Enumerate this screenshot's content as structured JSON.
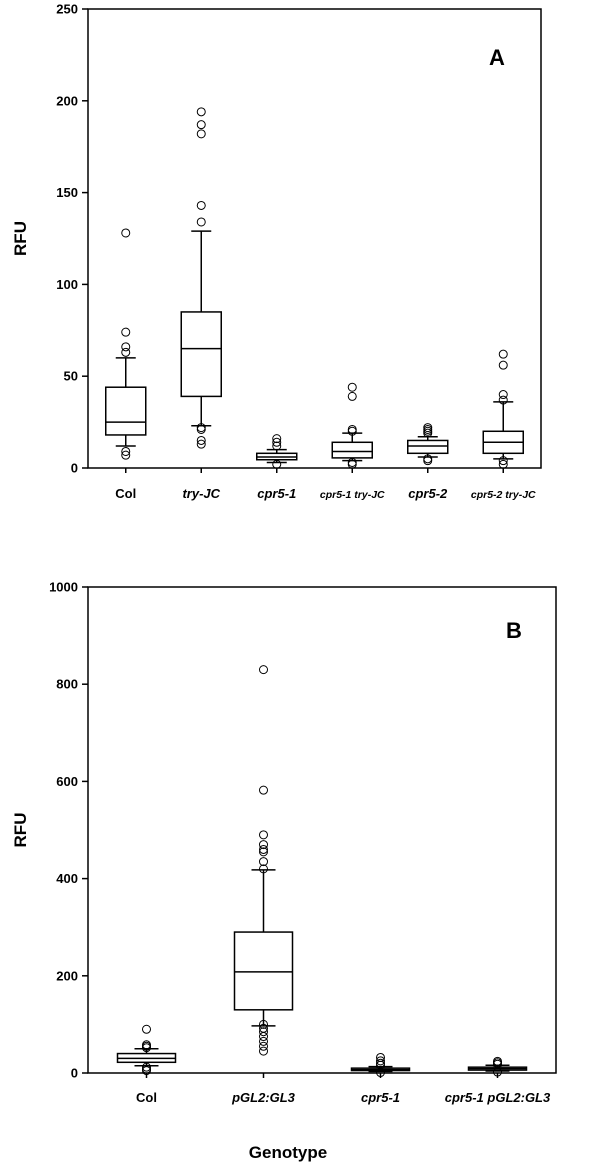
{
  "chart_data": [
    {
      "type": "box",
      "panel_label": "A",
      "ylabel": "RFU",
      "xlabel": "",
      "ylim": [
        0,
        250
      ],
      "yticks": [
        0,
        50,
        100,
        150,
        200,
        250
      ],
      "categories": [
        {
          "label": "Col",
          "italic": false,
          "small": false
        },
        {
          "label": "try-JC",
          "italic": true,
          "small": false
        },
        {
          "label": "cpr5-1",
          "italic": true,
          "small": false
        },
        {
          "label": "cpr5-1 try-JC",
          "italic": true,
          "small": true
        },
        {
          "label": "cpr5-2",
          "italic": true,
          "small": false
        },
        {
          "label": "cpr5-2 try-JC",
          "italic": true,
          "small": true
        }
      ],
      "boxes": [
        {
          "whisker_low": 12,
          "q1": 18,
          "median": 25,
          "q3": 44,
          "whisker_high": 60,
          "outliers": [
            7,
            9,
            63,
            66,
            74,
            128
          ]
        },
        {
          "whisker_low": 23,
          "q1": 39,
          "median": 65,
          "q3": 85,
          "whisker_high": 129,
          "outliers": [
            13,
            15,
            21,
            22,
            134,
            143,
            182,
            187,
            194
          ]
        },
        {
          "whisker_low": 3,
          "q1": 4.5,
          "median": 6,
          "q3": 8,
          "whisker_high": 10,
          "outliers": [
            2,
            12,
            14,
            16
          ]
        },
        {
          "whisker_low": 4,
          "q1": 5.5,
          "median": 9,
          "q3": 14,
          "whisker_high": 19,
          "outliers": [
            2,
            3,
            20,
            21,
            39,
            44
          ]
        },
        {
          "whisker_low": 6,
          "q1": 8,
          "median": 12,
          "q3": 15,
          "whisker_high": 17,
          "outliers": [
            4,
            5,
            19,
            20,
            21,
            22
          ]
        },
        {
          "whisker_low": 5,
          "q1": 8,
          "median": 14,
          "q3": 20,
          "whisker_high": 36,
          "outliers": [
            2,
            4,
            37,
            40,
            56,
            62
          ]
        }
      ]
    },
    {
      "type": "box",
      "panel_label": "B",
      "ylabel": "RFU",
      "xlabel": "Genotype",
      "ylim": [
        0,
        1000
      ],
      "yticks": [
        0,
        200,
        400,
        600,
        800,
        1000
      ],
      "categories": [
        {
          "label": "Col",
          "italic": false,
          "small": false
        },
        {
          "label": "pGL2:GL3",
          "italic": true,
          "small": false
        },
        {
          "label": "cpr5-1",
          "italic": true,
          "small": false
        },
        {
          "label": "cpr5-1 pGL2:GL3",
          "italic": true,
          "small": false
        }
      ],
      "boxes": [
        {
          "whisker_low": 15,
          "q1": 22,
          "median": 30,
          "q3": 40,
          "whisker_high": 50,
          "outliers": [
            5,
            8,
            12,
            52,
            55,
            58,
            90
          ]
        },
        {
          "whisker_low": 97,
          "q1": 130,
          "median": 208,
          "q3": 290,
          "whisker_high": 418,
          "outliers": [
            45,
            55,
            65,
            75,
            85,
            92,
            100,
            420,
            435,
            455,
            460,
            470,
            490,
            582,
            830
          ]
        },
        {
          "whisker_low": 3,
          "q1": 5,
          "median": 7,
          "q3": 10,
          "whisker_high": 13,
          "outliers": [
            1,
            16,
            20,
            25,
            32
          ]
        },
        {
          "whisker_low": 4,
          "q1": 6,
          "median": 9,
          "q3": 12,
          "whisker_high": 16,
          "outliers": [
            2,
            18,
            21,
            24
          ]
        }
      ]
    }
  ]
}
